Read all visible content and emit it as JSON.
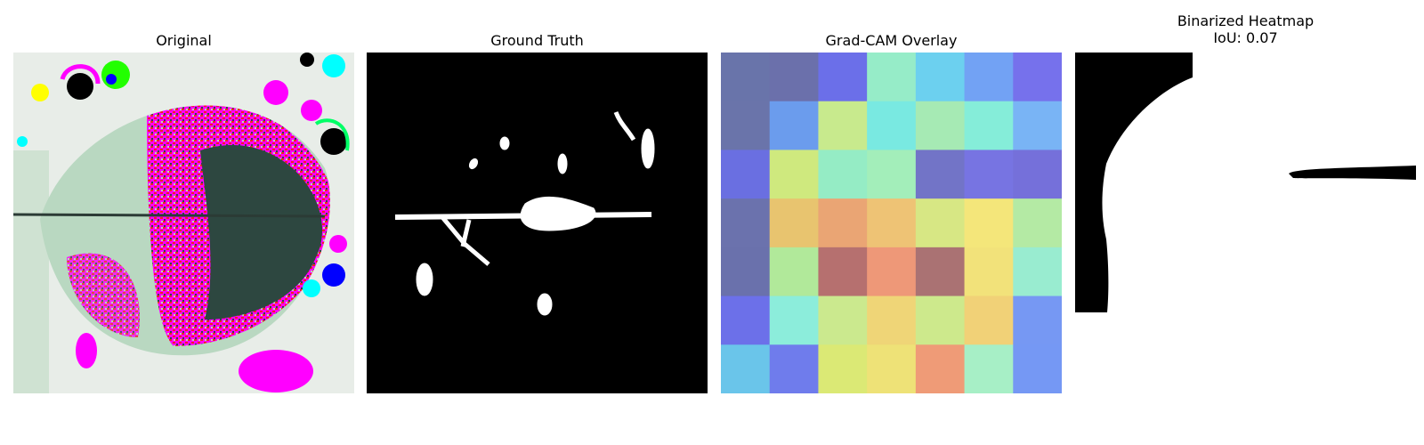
{
  "panels": [
    {
      "title": "Original"
    },
    {
      "title": "Ground Truth"
    },
    {
      "title": "Grad-CAM Overlay"
    },
    {
      "title": "Binarized Heatmap",
      "subtitle": "IoU: 0.07"
    }
  ],
  "gradcam": {
    "grid": [
      [
        "#6974aa",
        "#6b70ab",
        "#6b6fe9",
        "#96ecc8",
        "#6cd0ef",
        "#72a2f4",
        "#7671ec"
      ],
      [
        "#6a74aa",
        "#6b9ced",
        "#c8ea8d",
        "#79e9e1",
        "#a6eab4",
        "#85edd9",
        "#79b4f5"
      ],
      [
        "#6a6fe1",
        "#cfe97e",
        "#95ecc5",
        "#a3eeba",
        "#7274c7",
        "#7774e2",
        "#7570da"
      ],
      [
        "#6b72ad",
        "#e8c46f",
        "#eaa574",
        "#eec375",
        "#d7e784",
        "#f4e67a",
        "#b4eaa4"
      ],
      [
        "#6a71ac",
        "#b1e99a",
        "#b6706f",
        "#ee9878",
        "#aa7273",
        "#f2e27a",
        "#99ecd0"
      ],
      [
        "#6c70e9",
        "#8ceddb",
        "#cbe98e",
        "#efd577",
        "#cde98c",
        "#f1d177",
        "#7698f3"
      ],
      [
        "#6ac5ea",
        "#6f7cec",
        "#dbe975",
        "#eee277",
        "#ef9b77",
        "#a7efc6",
        "#7598f4"
      ]
    ]
  }
}
